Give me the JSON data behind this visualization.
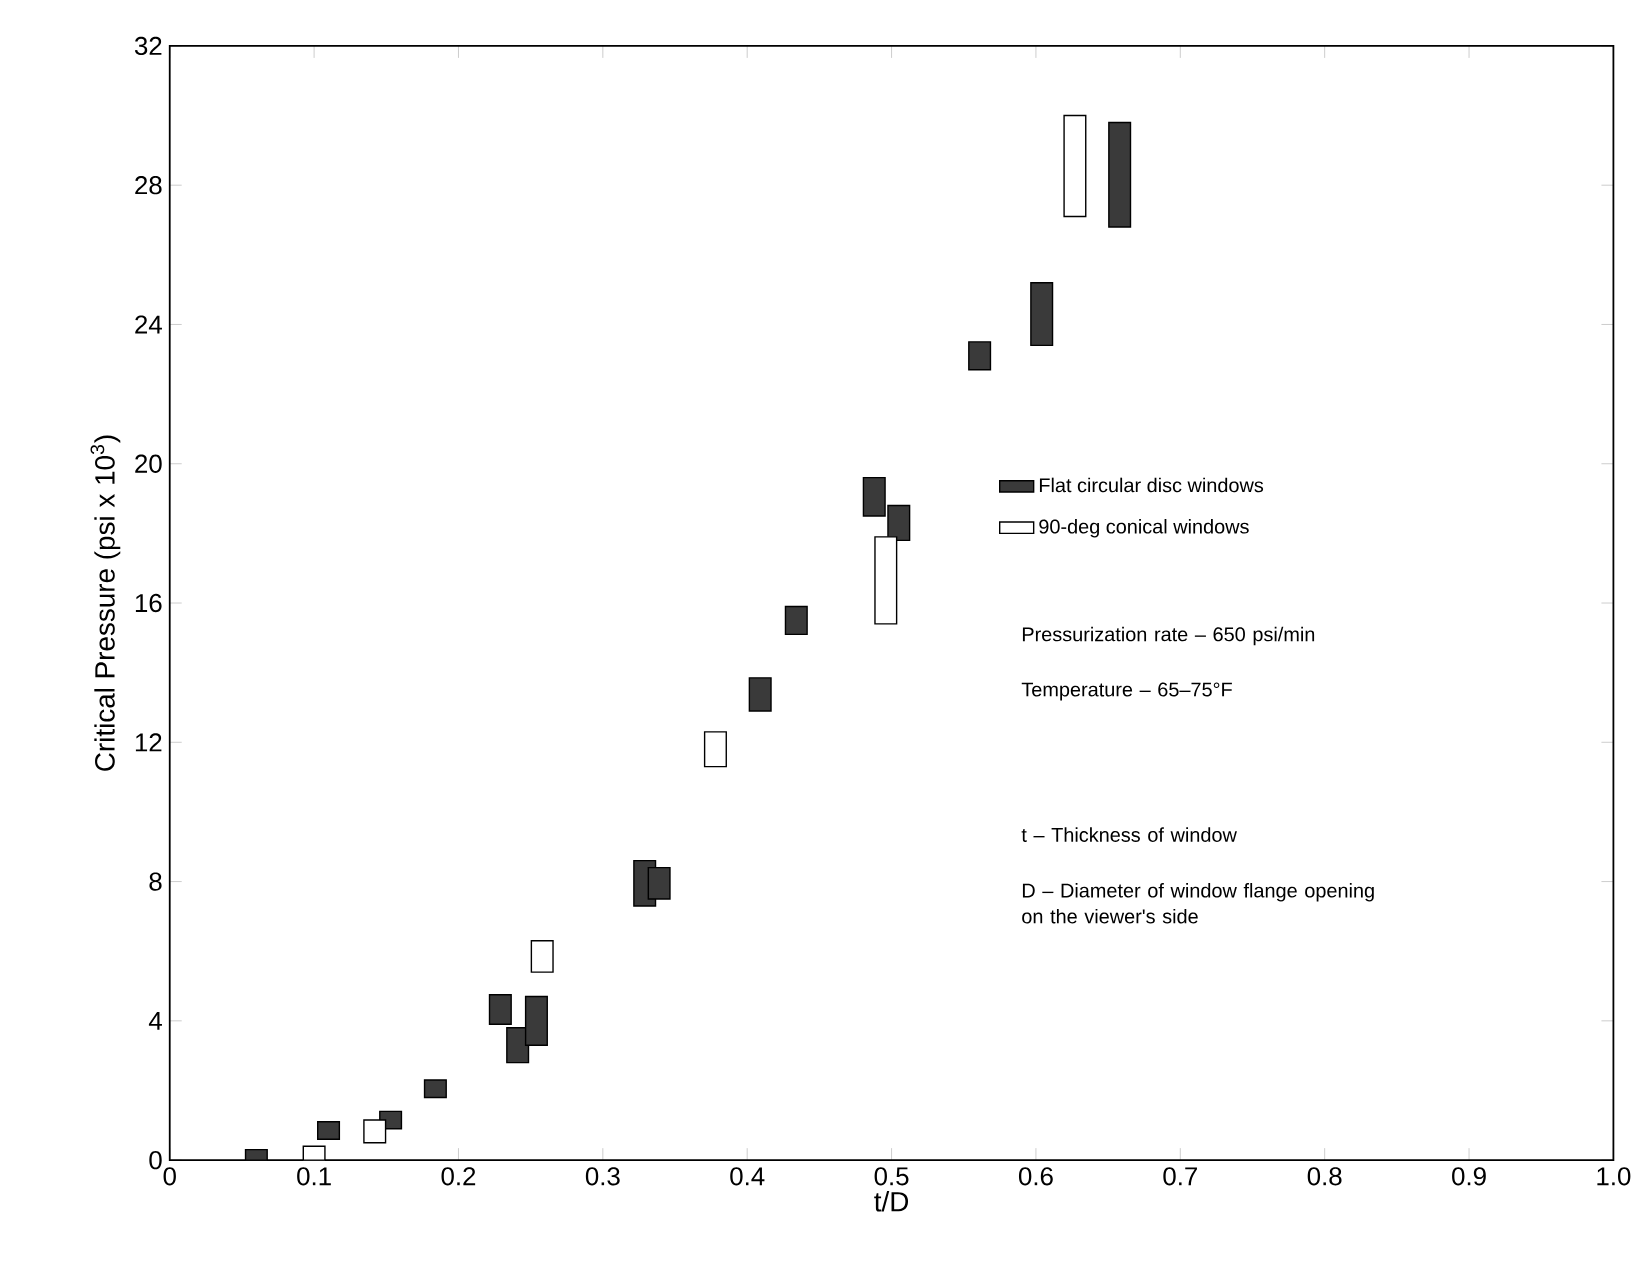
{
  "chart_data": {
    "type": "bar",
    "xlabel": "t/D",
    "ylabel": "Critical Pressure (psi x 10$^{3}$)",
    "xlim": [
      0,
      1
    ],
    "xticks": [
      0,
      0.1,
      0.2,
      0.3,
      0.4,
      0.5,
      0.6,
      0.7,
      0.8,
      0.9,
      {
        "value": 1,
        "label": "1.0"
      }
    ],
    "ylim": [
      0,
      32
    ],
    "yticks": [
      0,
      4,
      8,
      12,
      16,
      20,
      24,
      28,
      32
    ],
    "legend": "right",
    "grid": false,
    "series": [
      {
        "name": "Flat circular disc windows",
        "color": "#3a3a3a",
        "x": [
          0.06,
          0.11,
          0.153,
          0.184,
          0.229,
          0.241,
          0.254,
          0.329,
          0.339,
          0.409,
          0.434,
          0.488,
          0.505,
          0.561,
          0.604,
          0.658
        ],
        "base": [
          0,
          0.6,
          0.9,
          1.8,
          3.9,
          2.8,
          3.3,
          7.3,
          7.5,
          12.9,
          15.1,
          18.5,
          17.8,
          22.7,
          23.4,
          26.8
        ],
        "values": [
          0.3,
          0.5,
          0.5,
          0.5,
          0.85,
          1.0,
          1.4,
          1.3,
          0.9,
          0.95,
          0.8,
          1.1,
          1.0,
          0.8,
          1.8,
          3.0
        ]
      },
      {
        "name": "90-deg conical windows",
        "color": "#ffffff",
        "x": [
          0.1,
          0.142,
          0.258,
          0.378,
          0.496,
          0.627
        ],
        "base": [
          0,
          0.5,
          5.4,
          11.3,
          15.4,
          27.1
        ],
        "values": [
          0.4,
          0.65,
          0.9,
          1.0,
          2.5,
          2.9
        ]
      }
    ],
    "annotations": [
      "Pressurization rate – 650 psi/min",
      "Temperature – 65–75°F",
      "t – Thickness of window",
      "D – Diameter of window flange opening on the viewer's side"
    ]
  }
}
